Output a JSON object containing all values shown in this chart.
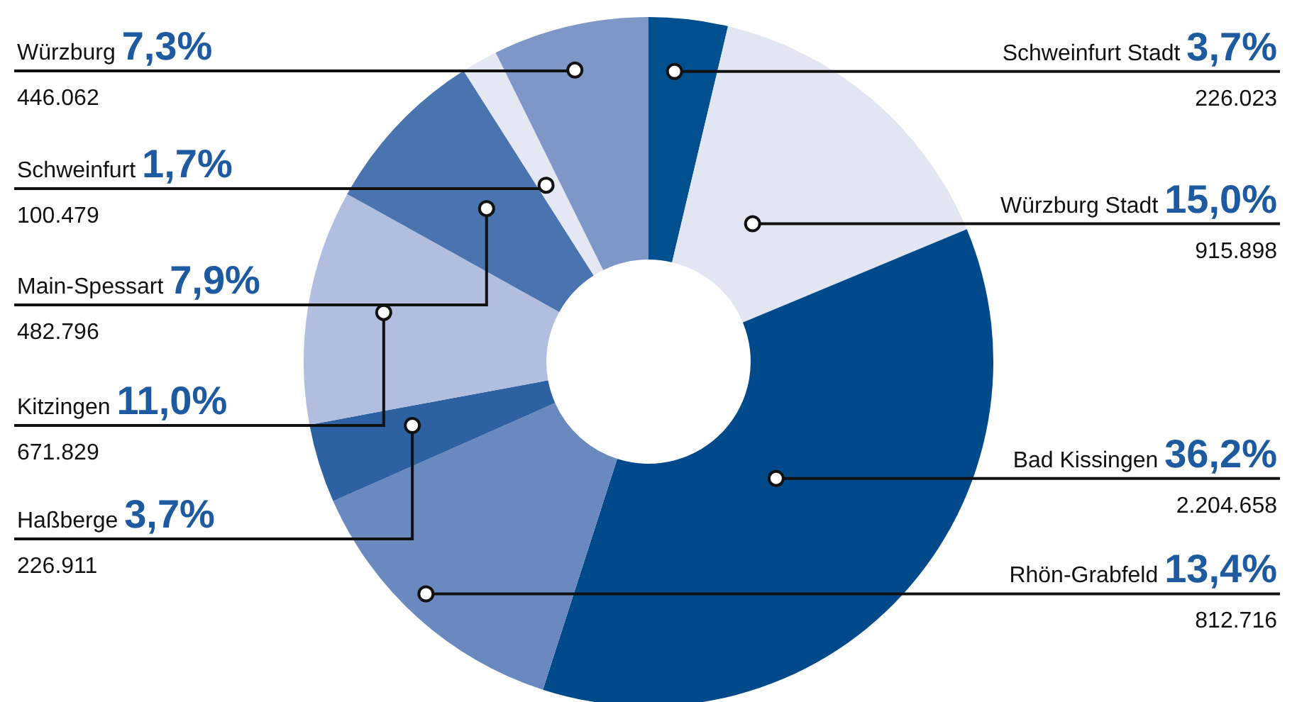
{
  "chart_data": {
    "type": "donut",
    "categories": [
      "Schweinfurt Stadt",
      "Würzburg Stadt",
      "Bad Kissingen",
      "Rhön-Grabfeld",
      "Haßberge",
      "Kitzingen",
      "Main-Spessart",
      "Schweinfurt",
      "Würzburg"
    ],
    "values": [
      3.7,
      15.0,
      36.2,
      13.4,
      3.7,
      11.0,
      7.9,
      1.7,
      7.3
    ],
    "value_labels": [
      "3,7%",
      "15,0%",
      "36,2%",
      "13,4%",
      "3,7%",
      "11,0%",
      "7,9%",
      "1,7%",
      "7,3%"
    ],
    "colors": [
      "#004f8f",
      "#e1e6f2",
      "#004a8b",
      "#6a8abf",
      "#2d61a2",
      "#b1bedf",
      "#4a74b0",
      "#e4e8f3",
      "#7f97c7"
    ],
    "annotations": [
      {
        "text": "226.023",
        "x": "Schweinfurt Stadt"
      },
      {
        "text": "915.898",
        "x": "Würzburg Stadt"
      },
      {
        "text": "2.204.658",
        "x": "Bad Kissingen"
      },
      {
        "text": "812.716",
        "x": "Rhön-Grabfeld"
      },
      {
        "text": "226.911",
        "x": "Haßberge"
      },
      {
        "text": "671.829",
        "x": "Kitzingen"
      },
      {
        "text": "482.796",
        "x": "Main-Spessart"
      },
      {
        "text": "100.479",
        "x": "Schweinfurt"
      },
      {
        "text": "446.062",
        "x": "Würzburg"
      }
    ]
  }
}
